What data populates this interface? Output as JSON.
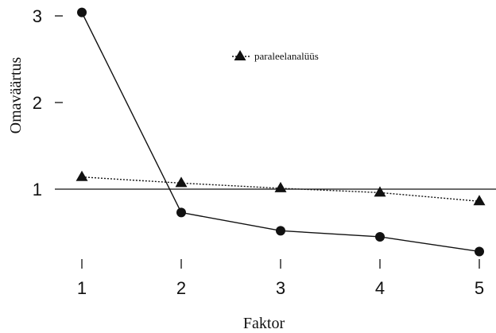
{
  "chart_data": {
    "type": "line",
    "xlabel": "Faktor",
    "ylabel": "Omaväärtus",
    "x": [
      1,
      2,
      3,
      4,
      5
    ],
    "xticks": [
      "1",
      "2",
      "3",
      "4",
      "5"
    ],
    "yticks": [
      "1",
      "2",
      "3"
    ],
    "xlim": [
      0.4,
      5.2
    ],
    "ylim": [
      0.0,
      3.2
    ],
    "reference_line": 1,
    "grid": false,
    "legend_position": "top-center",
    "series": [
      {
        "values": [
          3.04,
          0.73,
          0.52,
          0.45,
          0.28
        ],
        "marker": "circle",
        "style": "solid"
      },
      {
        "name": "paraleelanalüüs",
        "values": [
          1.14,
          1.07,
          1.01,
          0.96,
          0.86
        ],
        "marker": "triangle",
        "style": "dotted"
      }
    ]
  }
}
